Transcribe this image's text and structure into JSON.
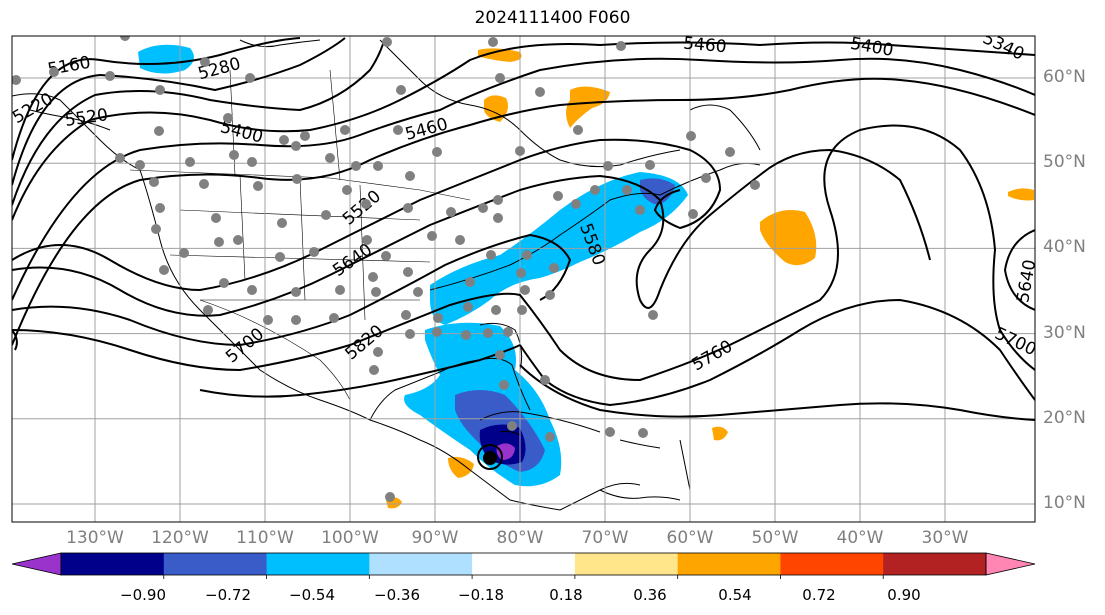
{
  "title": "2024111400 F060",
  "longitude_labels": [
    "130°W",
    "120°W",
    "110°W",
    "100°W",
    "90°W",
    "80°W",
    "70°W",
    "60°W",
    "50°W",
    "40°W",
    "30°W"
  ],
  "latitude_labels": [
    "60°N",
    "50°N",
    "40°N",
    "30°N",
    "20°N",
    "10°N"
  ],
  "contour_labels": [
    "5160",
    "5280",
    "5220",
    "5520",
    "5400",
    "5460",
    "5460",
    "5400",
    "5340",
    "5520",
    "5640",
    "5700",
    "5820",
    "5580",
    "5760",
    "5640",
    "5700"
  ],
  "colorbar": {
    "tick_labels": [
      "−0.90",
      "−0.72",
      "−0.54",
      "−0.36",
      "−0.18",
      "0.18",
      "0.36",
      "0.54",
      "0.72",
      "0.90"
    ],
    "colors": [
      "#9933cc",
      "#00008b",
      "#3a5cc9",
      "#00bfff",
      "#b0e0ff",
      "#ffffff",
      "#ffe68a",
      "#ffa500",
      "#ff4500",
      "#b22222",
      "#ff85b3"
    ]
  },
  "colors": {
    "contour": "#000000",
    "grid": "#a0a0a0",
    "station_dot": "#808080",
    "axis_label": "#7f7f7f"
  }
}
